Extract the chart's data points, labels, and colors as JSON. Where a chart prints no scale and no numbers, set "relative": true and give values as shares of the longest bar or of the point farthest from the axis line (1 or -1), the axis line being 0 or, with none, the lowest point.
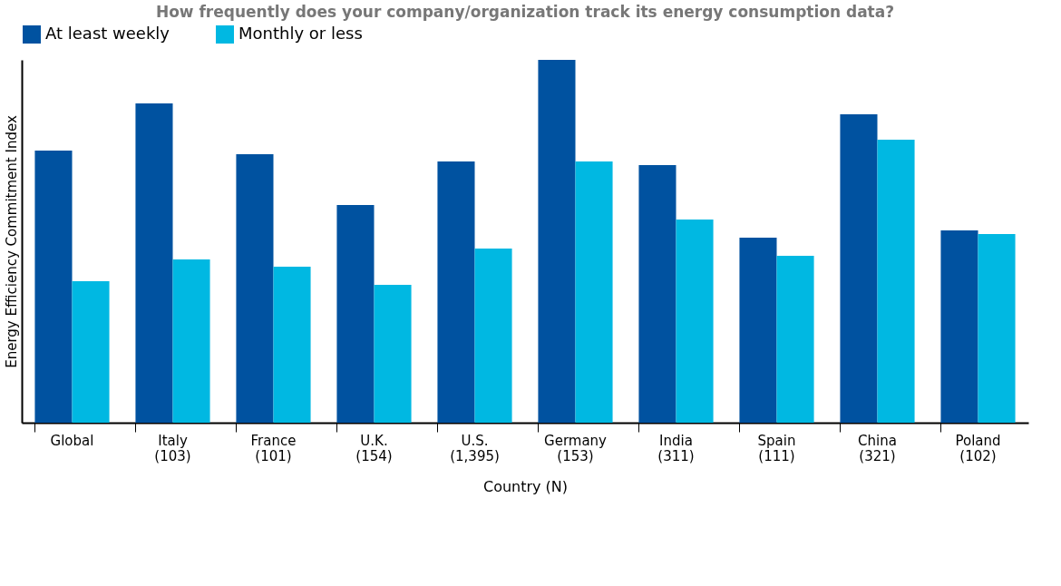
{
  "chart_data": {
    "type": "bar",
    "title": "How frequently does your company/organization track its energy consumption data?",
    "xlabel": "Country (N)",
    "ylabel": "Energy Efficiency Commitment Index",
    "relative": true,
    "legend": "top",
    "grid": false,
    "categories": [
      "Global",
      "Italy\n(103)",
      "France\n(101)",
      "U.K.\n(154)",
      "U.S.\n(1,395)",
      "Germany\n(153)",
      "India\n(311)",
      "Spain\n(111)",
      "China\n(321)",
      "Poland\n(102)"
    ],
    "series": [
      {
        "name": "At least weekly",
        "color": "#0052a0",
        "values": [
          0.75,
          0.88,
          0.74,
          0.6,
          0.72,
          1,
          0.71,
          0.51,
          0.85,
          0.53
        ]
      },
      {
        "name": "Monthly or less",
        "color": "#00b8e2",
        "values": [
          0.39,
          0.45,
          0.43,
          0.38,
          0.48,
          0.72,
          0.56,
          0.46,
          0.78,
          0.52
        ]
      }
    ]
  }
}
